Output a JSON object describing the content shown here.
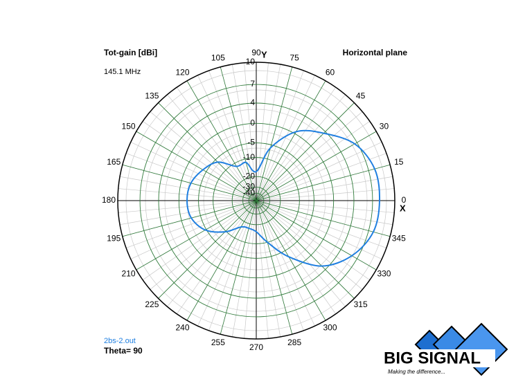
{
  "chart_data": {
    "type": "polar",
    "title": "Tot-gain [dBi]",
    "subtitle": "145.1 MHz",
    "plane": "Horizontal plane",
    "x_axis_label": "X",
    "y_axis_label": "Y",
    "note": "Theta= 90",
    "rlim": [
      -40,
      10
    ],
    "rticks": [
      10,
      7,
      4,
      0,
      -5,
      -10,
      -20,
      -30,
      -40
    ],
    "thetaticks": [
      0,
      15,
      30,
      45,
      60,
      75,
      90,
      105,
      120,
      135,
      150,
      165,
      180,
      195,
      210,
      225,
      240,
      255,
      270,
      285,
      300,
      315,
      330,
      345
    ],
    "grid": true,
    "series": [
      {
        "name": "2bs-2.out",
        "color": "#1f7fe0",
        "theta": [
          0,
          15,
          30,
          45,
          60,
          75,
          90,
          105,
          120,
          135,
          150,
          165,
          180,
          195,
          210,
          225,
          240,
          255,
          270,
          285,
          300,
          315,
          330,
          345
        ],
        "values": [
          8.0,
          7.9,
          6.6,
          3.6,
          0.5,
          -6,
          -16.8,
          -11.5,
          -11.5,
          -6,
          -3.9,
          -2.3,
          -1.9,
          -2.4,
          -4.7,
          -9.6,
          -16,
          -17,
          -15.6,
          -10,
          -3,
          3.1,
          6.1,
          7.7
        ]
      }
    ]
  },
  "logo": {
    "text": "BIG SIGNAL",
    "tagline": "Making the difference..."
  }
}
